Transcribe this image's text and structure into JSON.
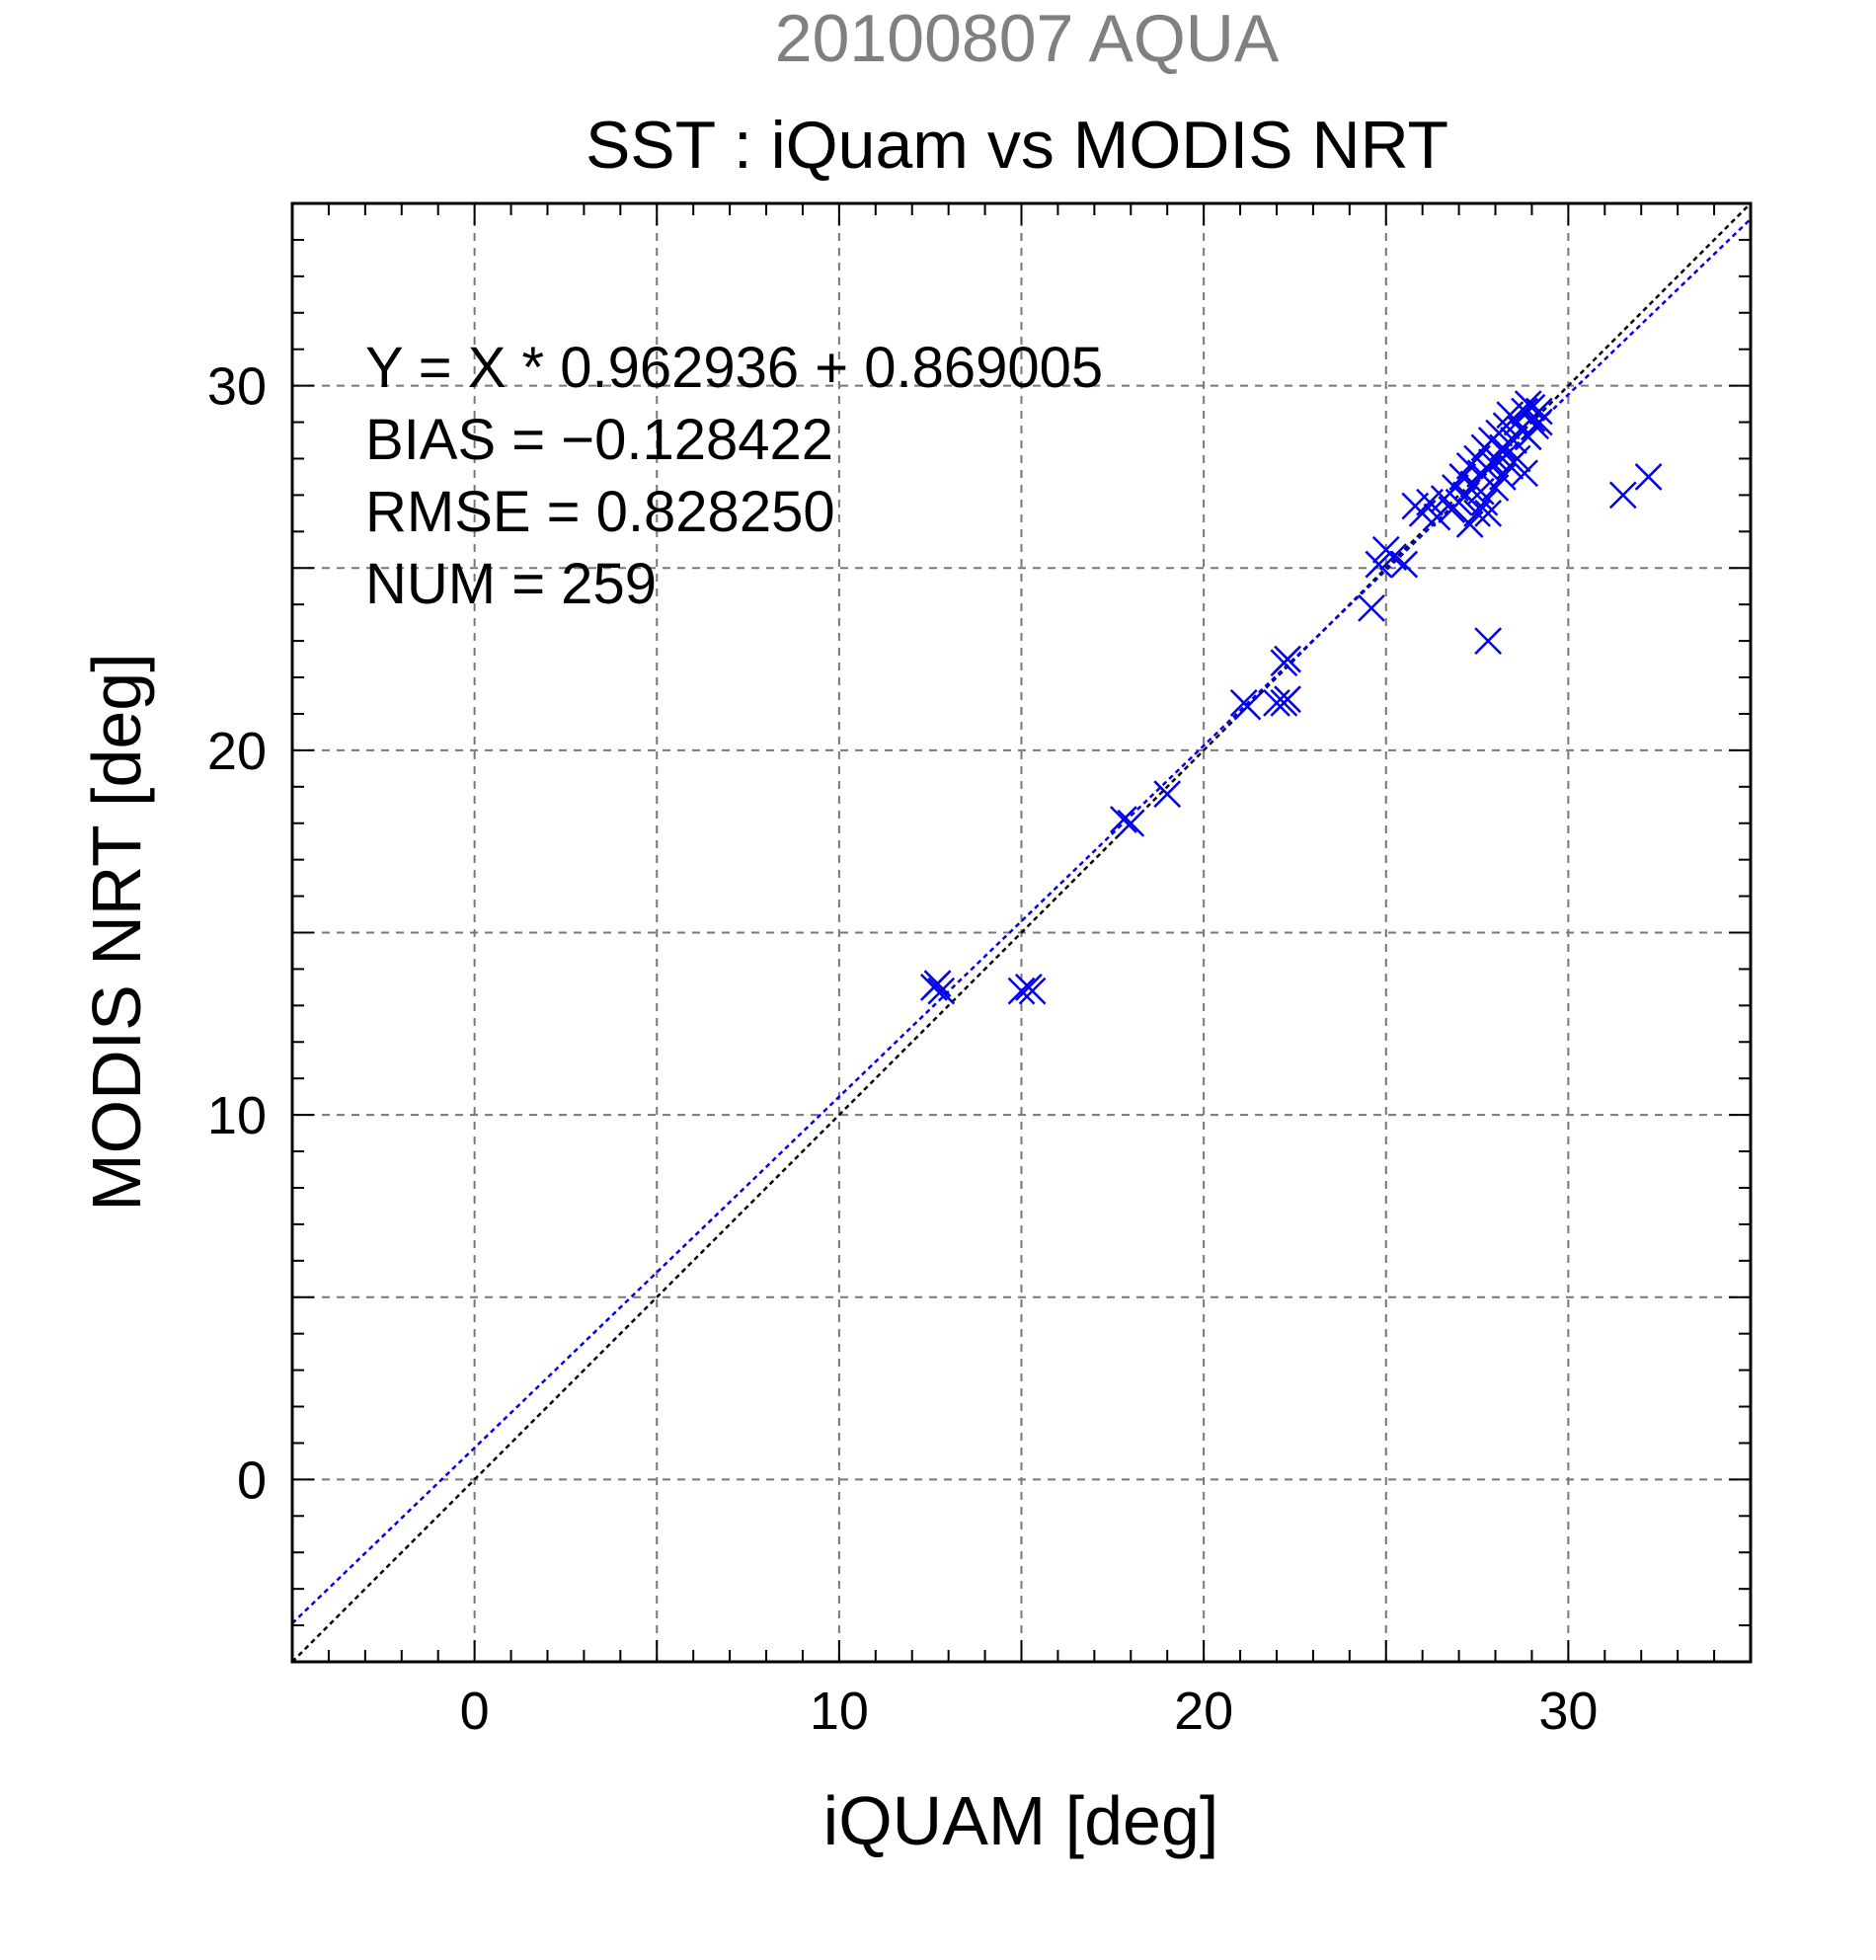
{
  "chart_data": {
    "type": "scatter",
    "header": "20100807 AQUA",
    "title": "SST : iQuam vs MODIS NRT",
    "xlabel": "iQUAM [deg]",
    "ylabel": "MODIS NRT [deg]",
    "xlim": [
      -5,
      35
    ],
    "ylim": [
      -5,
      35
    ],
    "xticks": [
      0,
      10,
      20,
      30
    ],
    "yticks": [
      0,
      10,
      20,
      30
    ],
    "xtick_labels": [
      "0",
      "10",
      "20",
      "30"
    ],
    "ytick_labels": [
      "0",
      "10",
      "20",
      "30"
    ],
    "grid": true,
    "stats": [
      "Y = X * 0.962936 + 0.869005",
      "BIAS = −0.128422",
      "RMSE = 0.828250",
      "NUM = 259"
    ],
    "fit": {
      "slope": 0.962936,
      "intercept": 0.869005
    },
    "colors": {
      "points": "#0000ee",
      "fit_line": "#0000ee",
      "identity_line": "#000000",
      "grid": "#777777",
      "header": "#808080"
    },
    "series": [
      {
        "marker": "x",
        "points": [
          [
            12.6,
            13.5
          ],
          [
            12.8,
            13.4
          ],
          [
            12.7,
            13.6
          ],
          [
            15.0,
            13.4
          ],
          [
            15.2,
            13.5
          ],
          [
            15.3,
            13.4
          ],
          [
            17.8,
            18.1
          ],
          [
            18.0,
            18.0
          ],
          [
            19.0,
            18.8
          ],
          [
            21.1,
            21.3
          ],
          [
            21.2,
            21.2
          ],
          [
            22.0,
            21.3
          ],
          [
            22.2,
            21.3
          ],
          [
            22.3,
            21.4
          ],
          [
            22.2,
            22.4
          ],
          [
            22.3,
            22.5
          ],
          [
            24.6,
            23.9
          ],
          [
            24.8,
            25.1
          ],
          [
            25.0,
            25.5
          ],
          [
            25.2,
            25.3
          ],
          [
            25.5,
            25.1
          ],
          [
            25.8,
            26.7
          ],
          [
            26.0,
            26.5
          ],
          [
            26.2,
            26.8
          ],
          [
            26.4,
            26.4
          ],
          [
            26.6,
            26.9
          ],
          [
            26.8,
            26.6
          ],
          [
            26.9,
            27.2
          ],
          [
            27.0,
            26.8
          ],
          [
            27.1,
            27.5
          ],
          [
            27.2,
            27.0
          ],
          [
            27.3,
            26.2
          ],
          [
            27.3,
            27.8
          ],
          [
            27.4,
            27.3
          ],
          [
            27.5,
            26.5
          ],
          [
            27.5,
            28.0
          ],
          [
            27.6,
            27.6
          ],
          [
            27.7,
            26.8
          ],
          [
            27.7,
            28.3
          ],
          [
            27.8,
            26.5
          ],
          [
            27.8,
            27.7
          ],
          [
            27.9,
            28.5
          ],
          [
            28.0,
            27.2
          ],
          [
            28.0,
            28.0
          ],
          [
            28.1,
            28.7
          ],
          [
            28.2,
            27.5
          ],
          [
            28.2,
            28.3
          ],
          [
            28.3,
            28.9
          ],
          [
            28.4,
            27.8
          ],
          [
            28.4,
            29.2
          ],
          [
            28.5,
            28.5
          ],
          [
            28.6,
            28.0
          ],
          [
            28.6,
            29.0
          ],
          [
            28.7,
            28.8
          ],
          [
            28.8,
            29.3
          ],
          [
            28.8,
            27.6
          ],
          [
            28.9,
            28.6
          ],
          [
            29.0,
            29.4
          ],
          [
            29.0,
            29.1
          ],
          [
            29.1,
            28.9
          ],
          [
            29.2,
            29.3
          ],
          [
            28.9,
            29.5
          ],
          [
            29.2,
            29.0
          ],
          [
            28.3,
            28.1
          ],
          [
            27.9,
            27.9
          ],
          [
            27.6,
            27.1
          ],
          [
            27.8,
            23.0
          ],
          [
            31.5,
            27.0
          ],
          [
            32.2,
            27.5
          ]
        ]
      }
    ]
  }
}
